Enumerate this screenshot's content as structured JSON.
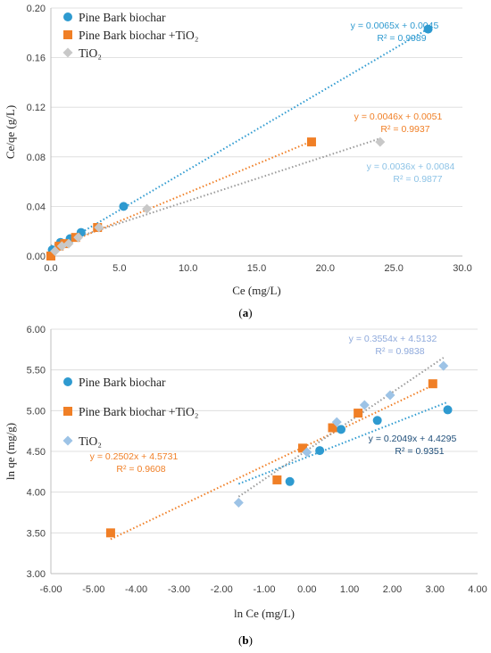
{
  "chart_data": [
    {
      "type": "scatter",
      "panel_label_prefix": "(",
      "panel_label_letter": "a",
      "panel_label_suffix": ")",
      "xlabel": "Ce (mg/L)",
      "ylabel": "Ce/qe (g/L)",
      "xlim": [
        0,
        30
      ],
      "ylim": [
        0,
        0.2
      ],
      "xticks": [
        "0.0",
        "5.0",
        "10.0",
        "15.0",
        "20.0",
        "25.0",
        "30.0"
      ],
      "yticks": [
        "0.00",
        "0.04",
        "0.08",
        "0.12",
        "0.16",
        "0.20"
      ],
      "grid": "horizontal",
      "legend_position": "top-left",
      "series": [
        {
          "name": "Pine Bark biochar",
          "marker": "circle",
          "color": "#2E9AD0",
          "x": [
            0.1,
            0.7,
            1.4,
            2.2,
            5.3,
            27.5
          ],
          "y": [
            0.005,
            0.011,
            0.014,
            0.019,
            0.04,
            0.183
          ],
          "equation": "y = 0.0065x + 0.0045",
          "r2": "R² = 0.9989",
          "slope": 0.0065,
          "intercept": 0.0045,
          "fit_range": [
            0,
            27.5
          ],
          "equation_color": "#2E9AD0"
        },
        {
          "name": "Pine Bark biochar +TiO₂",
          "marker": "square",
          "color": "#F07F26",
          "x": [
            0.0,
            0.6,
            1.0,
            1.8,
            3.4,
            19.0
          ],
          "y": [
            0.0,
            0.008,
            0.01,
            0.015,
            0.023,
            0.092
          ],
          "equation": "y = 0.0046x + 0.0051",
          "r2": "R² = 0.9937",
          "slope": 0.0046,
          "intercept": 0.0051,
          "fit_range": [
            0,
            19.0
          ],
          "equation_color": "#F07F26"
        },
        {
          "name": "TiO₂",
          "marker": "diamond",
          "color": "#C8C8C8",
          "x": [
            0.3,
            0.8,
            1.3,
            2.0,
            3.5,
            7.0,
            24.0
          ],
          "y": [
            0.004,
            0.008,
            0.01,
            0.015,
            0.023,
            0.038,
            0.092
          ],
          "equation": "y = 0.0036x + 0.0084",
          "r2": "R² = 0.9877",
          "slope": 0.0036,
          "intercept": 0.0084,
          "fit_range": [
            0,
            24.0
          ],
          "equation_color": "#8DC3E6"
        }
      ]
    },
    {
      "type": "scatter",
      "panel_label_prefix": "(",
      "panel_label_letter": "b",
      "panel_label_suffix": ")",
      "xlabel": "ln Ce (mg/L)",
      "ylabel": "ln qe (mg/g)",
      "xlim": [
        -6,
        4
      ],
      "ylim": [
        3,
        6
      ],
      "xticks": [
        "-6.00",
        "-5.00",
        "-4.00",
        "-3.00",
        "-2.00",
        "-1.00",
        "0.00",
        "1.00",
        "2.00",
        "3.00",
        "4.00"
      ],
      "yticks": [
        "3.00",
        "3.50",
        "4.00",
        "4.50",
        "5.00",
        "5.50",
        "6.00"
      ],
      "grid": "horizontal",
      "legend_position": "top-left",
      "series": [
        {
          "name": "Pine Bark biochar",
          "marker": "circle",
          "color": "#2E9AD0",
          "x": [
            -0.4,
            0.3,
            0.8,
            1.65,
            3.3
          ],
          "y": [
            4.13,
            4.51,
            4.77,
            4.88,
            5.01
          ],
          "equation": "y = 0.2049x + 4.4295",
          "r2": "R² = 0.9351",
          "slope": 0.2049,
          "intercept": 4.4295,
          "fit_range": [
            -1.6,
            3.3
          ],
          "equation_color": "#1F4E79"
        },
        {
          "name": "Pine Bark biochar +TiO₂",
          "marker": "square",
          "color": "#F07F26",
          "x": [
            -4.6,
            -0.7,
            -0.1,
            0.6,
            1.2,
            2.95
          ],
          "y": [
            3.5,
            4.15,
            4.54,
            4.79,
            4.97,
            5.33
          ],
          "equation": "y = 0.2502x + 4.5731",
          "r2": "R² = 0.9608",
          "slope": 0.2502,
          "intercept": 4.5731,
          "fit_range": [
            -4.6,
            2.95
          ],
          "equation_color": "#F07F26"
        },
        {
          "name": "TiO₂",
          "marker": "diamond",
          "color": "#9DC3E6",
          "x": [
            -1.6,
            0.0,
            0.7,
            1.35,
            1.95,
            3.2
          ],
          "y": [
            3.87,
            4.49,
            4.86,
            5.07,
            5.19,
            5.55
          ],
          "equation": "y = 0.3554x + 4.5132",
          "r2": "R² = 0.9838",
          "slope": 0.3554,
          "intercept": 4.5132,
          "fit_range": [
            -1.6,
            3.2
          ],
          "equation_color": "#8FAADC"
        }
      ]
    }
  ]
}
